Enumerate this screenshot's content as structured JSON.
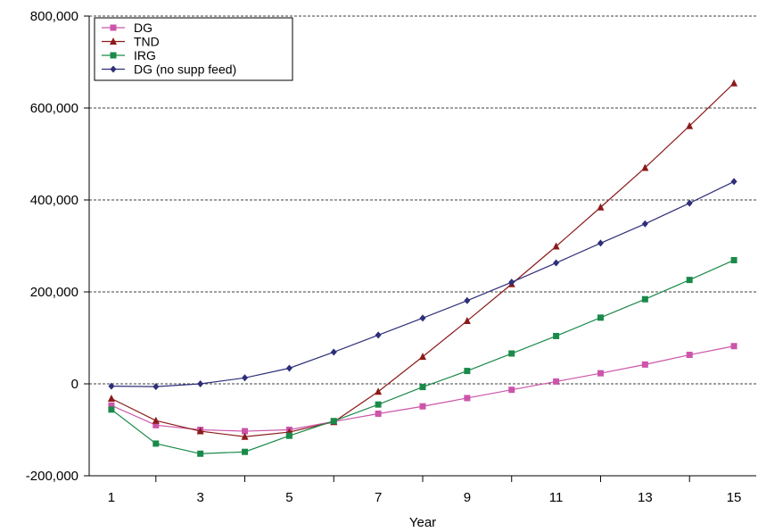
{
  "chart_data": {
    "type": "line",
    "title": "",
    "xlabel": "Year",
    "ylabel": "",
    "x": [
      1,
      2,
      3,
      4,
      5,
      6,
      7,
      8,
      9,
      10,
      11,
      12,
      13,
      14,
      15
    ],
    "xticks": [
      1,
      3,
      5,
      7,
      9,
      11,
      13,
      15
    ],
    "xtick_labels": [
      "1",
      "3",
      "5",
      "7",
      "9",
      "11",
      "13",
      "15"
    ],
    "xlim": [
      0.5,
      15.5
    ],
    "ylim": [
      -200000,
      800000
    ],
    "yticks": [
      -200000,
      0,
      200000,
      400000,
      600000,
      800000
    ],
    "ytick_labels": [
      "-200,000",
      "0",
      "200,000",
      "400,000",
      "600,000",
      "800,000"
    ],
    "grid": "horizontal-dashed",
    "legend_position": "top-left",
    "series": [
      {
        "name": "DG",
        "color": "#cc55aa",
        "marker": "square",
        "values": [
          -47000,
          -90000,
          -100000,
          -103000,
          -100000,
          -82000,
          -65000,
          -49000,
          -31000,
          -13000,
          5000,
          23000,
          42000,
          63000,
          82000
        ]
      },
      {
        "name": "TND",
        "color": "#8b1a1a",
        "marker": "triangle",
        "values": [
          -32000,
          -80000,
          -103000,
          -115000,
          -105000,
          -83000,
          -17000,
          59000,
          137000,
          217000,
          299000,
          384000,
          470000,
          561000,
          654000
        ]
      },
      {
        "name": "IRG",
        "color": "#1a8a4a",
        "marker": "square",
        "values": [
          -56000,
          -130000,
          -152000,
          -148000,
          -113000,
          -81000,
          -45000,
          -7000,
          28000,
          66000,
          104000,
          144000,
          184000,
          226000,
          269000
        ]
      },
      {
        "name": "DG (no supp feed)",
        "color": "#2e2e7a",
        "marker": "diamond",
        "values": [
          -5000,
          -6000,
          0,
          13000,
          34000,
          69000,
          106000,
          143000,
          181000,
          221000,
          263000,
          306000,
          348000,
          393000,
          440000
        ]
      }
    ]
  }
}
